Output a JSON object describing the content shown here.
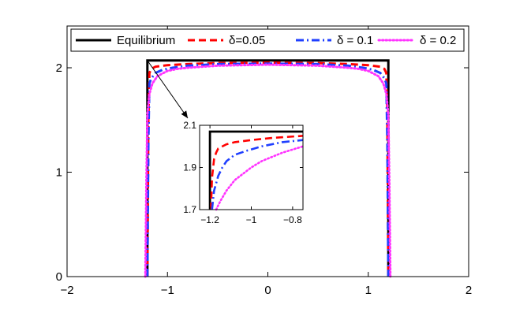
{
  "chart_data": [
    {
      "type": "line",
      "title": "",
      "xlabel": "",
      "ylabel": "",
      "xlim": [
        -2,
        2
      ],
      "ylim": [
        0,
        2.4
      ],
      "xticks": [
        -2,
        -1,
        0,
        1,
        2
      ],
      "yticks": [
        0,
        1,
        2
      ],
      "xtick_labels": [
        "−2",
        "−1",
        "0",
        "1",
        "2"
      ],
      "ytick_labels": [
        "0",
        "1",
        "2"
      ],
      "legend_position": "top",
      "series": [
        {
          "name": "Equilibrium",
          "color": "#000000",
          "style": "solid",
          "x": [
            -1.2,
            -1.2,
            1.2,
            1.2
          ],
          "y": [
            0,
            2.07,
            2.07,
            0
          ]
        },
        {
          "name": "δ=0.05",
          "color": "#ff0000",
          "style": "dashed",
          "x": [
            -1.2,
            -1.19,
            -1.18,
            -1.16,
            -1.12,
            -1.0,
            -0.8,
            -0.5,
            0,
            0.5,
            0.8,
            1.0,
            1.12,
            1.16,
            1.18,
            1.19,
            1.2
          ],
          "y": [
            0,
            1.5,
            1.95,
            1.99,
            2.01,
            2.025,
            2.035,
            2.045,
            2.05,
            2.045,
            2.035,
            2.025,
            2.01,
            1.99,
            1.95,
            1.5,
            0
          ]
        },
        {
          "name": "δ = 0.1",
          "color": "#1f3fff",
          "style": "dashdot",
          "x": [
            -1.2,
            -1.19,
            -1.18,
            -1.16,
            -1.12,
            -1.05,
            -0.95,
            -0.8,
            -0.5,
            0,
            0.5,
            0.8,
            0.95,
            1.05,
            1.12,
            1.16,
            1.18,
            1.19,
            1.2
          ],
          "y": [
            0,
            1.3,
            1.85,
            1.9,
            1.95,
            1.98,
            2.0,
            2.02,
            2.035,
            2.04,
            2.035,
            2.02,
            2.0,
            1.98,
            1.95,
            1.9,
            1.85,
            1.3,
            0
          ]
        },
        {
          "name": "δ = 0.2",
          "color": "#ff33ff",
          "style": "dotted",
          "x": [
            -1.22,
            -1.21,
            -1.2,
            -1.18,
            -1.15,
            -1.1,
            -1.0,
            -0.9,
            -0.8,
            -0.5,
            0,
            0.5,
            0.8,
            0.9,
            1.0,
            1.1,
            1.15,
            1.18,
            1.2,
            1.21,
            1.22
          ],
          "y": [
            0,
            0.9,
            1.55,
            1.75,
            1.85,
            1.92,
            1.97,
            1.99,
            2.0,
            2.02,
            2.03,
            2.02,
            2.0,
            1.99,
            1.97,
            1.92,
            1.85,
            1.75,
            1.55,
            0.9,
            0
          ]
        }
      ]
    },
    {
      "type": "line",
      "title": "",
      "xlabel": "",
      "ylabel": "",
      "xlim": [
        -1.25,
        -0.75
      ],
      "ylim": [
        1.7,
        2.1
      ],
      "xticks": [
        -1.2,
        -1.0,
        -0.8
      ],
      "yticks": [
        1.7,
        1.9,
        2.1
      ],
      "xtick_labels": [
        "−1.2",
        "−1",
        "−0.8"
      ],
      "ytick_labels": [
        "1.7",
        "1.9",
        "2.1"
      ],
      "series": [
        {
          "name": "Equilibrium",
          "color": "#000000",
          "style": "solid",
          "x": [
            -1.2,
            -1.2,
            -0.75
          ],
          "y": [
            1.7,
            2.07,
            2.07
          ]
        },
        {
          "name": "δ=0.05",
          "color": "#ff0000",
          "style": "dashed",
          "x": [
            -1.195,
            -1.19,
            -1.18,
            -1.17,
            -1.16,
            -1.14,
            -1.12,
            -1.08,
            -1.0,
            -0.9,
            -0.75
          ],
          "y": [
            1.7,
            1.85,
            1.94,
            1.97,
            1.99,
            2.0,
            2.01,
            2.02,
            2.03,
            2.04,
            2.05
          ]
        },
        {
          "name": "δ = 0.1",
          "color": "#1f3fff",
          "style": "dashdot",
          "x": [
            -1.19,
            -1.18,
            -1.16,
            -1.14,
            -1.12,
            -1.08,
            -1.02,
            -0.95,
            -0.85,
            -0.75
          ],
          "y": [
            1.7,
            1.79,
            1.86,
            1.9,
            1.93,
            1.96,
            1.98,
            2.0,
            2.02,
            2.03
          ]
        },
        {
          "name": "δ = 0.2",
          "color": "#ff33ff",
          "style": "dotted",
          "x": [
            -1.17,
            -1.15,
            -1.12,
            -1.08,
            -1.04,
            -1.0,
            -0.95,
            -0.9,
            -0.85,
            -0.8,
            -0.75
          ],
          "y": [
            1.7,
            1.74,
            1.79,
            1.84,
            1.87,
            1.9,
            1.93,
            1.95,
            1.97,
            1.985,
            2.0
          ]
        }
      ]
    }
  ]
}
